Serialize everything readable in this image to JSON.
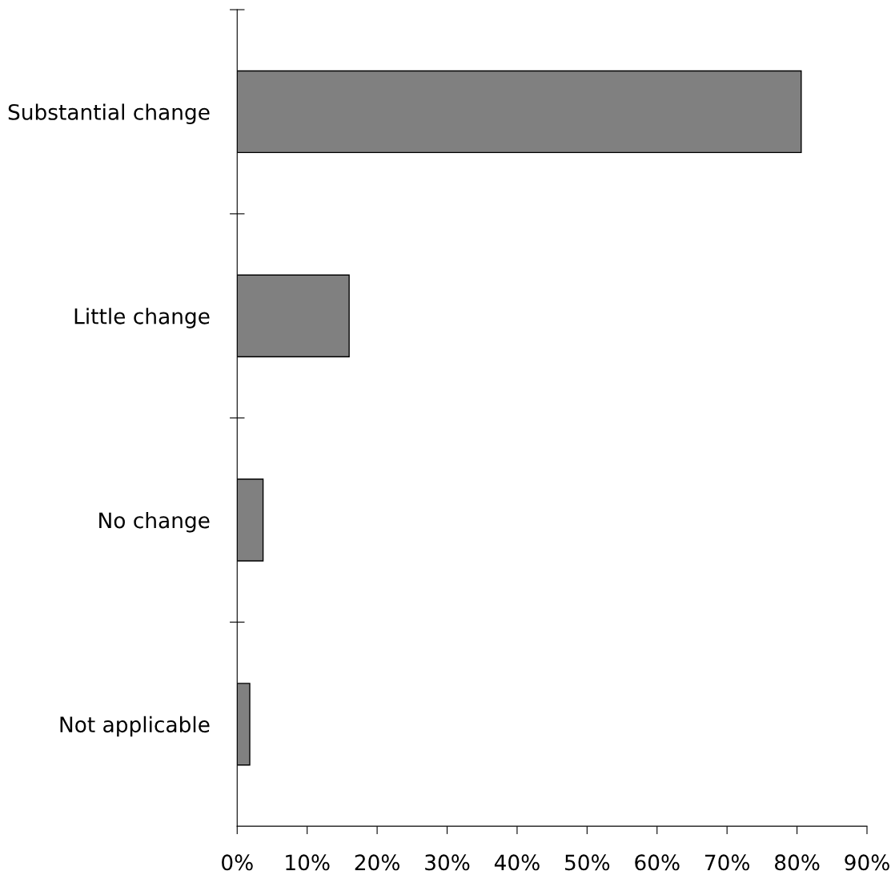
{
  "chart_data": {
    "type": "bar",
    "orientation": "horizontal",
    "categories": [
      "Substantial change",
      "Little change",
      "No change",
      "Not applicable"
    ],
    "values": [
      80.6,
      16.0,
      3.7,
      1.8
    ],
    "color": "#808080",
    "xlim": [
      0,
      90
    ],
    "xticks": [
      {
        "value": 0,
        "label": "0%"
      },
      {
        "value": 10,
        "label": "10%"
      },
      {
        "value": 20,
        "label": "20%"
      },
      {
        "value": 30,
        "label": "30%"
      },
      {
        "value": 40,
        "label": "40%"
      },
      {
        "value": 50,
        "label": "50%"
      },
      {
        "value": 60,
        "label": "60%"
      },
      {
        "value": 70,
        "label": "70%"
      },
      {
        "value": 80,
        "label": "80%"
      },
      {
        "value": 90,
        "label": "90%"
      }
    ],
    "grid": false,
    "legend": false
  }
}
